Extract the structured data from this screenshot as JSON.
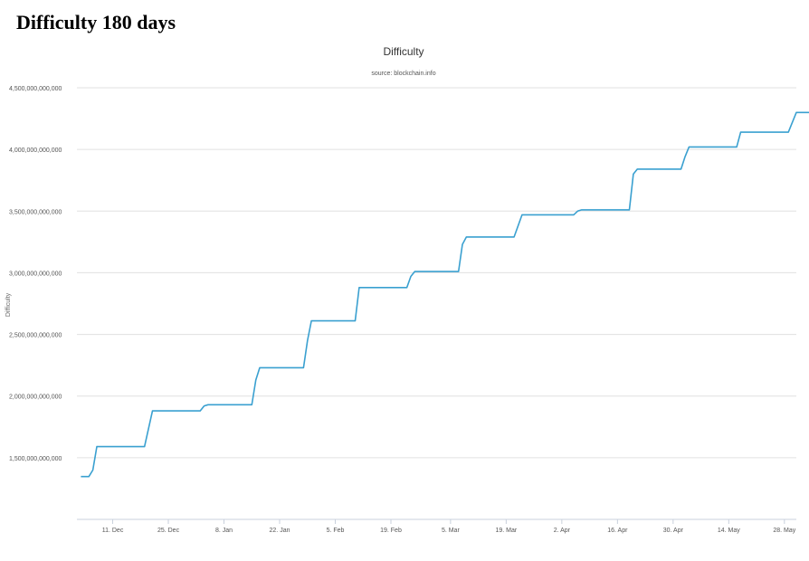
{
  "page": {
    "heading": "Difficulty 180 days"
  },
  "chart_data": {
    "type": "line",
    "title": "Difficulty",
    "subtitle": "source: blockchain.info",
    "xlabel": "",
    "ylabel": "Difficulty",
    "ylim": [
      1000000000000,
      4500000000000
    ],
    "xlim": [
      "2015-12-02",
      "2016-05-31"
    ],
    "y_ticks": [
      1500000000000,
      2000000000000,
      2500000000000,
      3000000000000,
      3500000000000,
      4000000000000,
      4500000000000
    ],
    "y_tick_labels": [
      "1,500,000,000,000",
      "2,000,000,000,000",
      "2,500,000,000,000",
      "3,000,000,000,000",
      "3,500,000,000,000",
      "4,000,000,000,000",
      "4,500,000,000,000"
    ],
    "x_ticks": [
      "2015-12-11",
      "2015-12-25",
      "2016-01-08",
      "2016-01-22",
      "2016-02-05",
      "2016-02-19",
      "2016-03-05",
      "2016-03-19",
      "2016-04-02",
      "2016-04-16",
      "2016-04-30",
      "2016-05-14",
      "2016-05-28"
    ],
    "x_tick_labels": [
      "11. Dec",
      "25. Dec",
      "8. Jan",
      "22. Jan",
      "5. Feb",
      "19. Feb",
      "5. Mar",
      "19. Mar",
      "2. Apr",
      "16. Apr",
      "30. Apr",
      "14. May",
      "28. May"
    ],
    "grid": true,
    "legend": "none",
    "color": "#3aa0d0",
    "series": [
      {
        "x": [
          "2015-12-03",
          "2015-12-05",
          "2015-12-06",
          "2015-12-07",
          "2015-12-19",
          "2015-12-21",
          "2016-01-02",
          "2016-01-03",
          "2016-01-04",
          "2016-01-15",
          "2016-01-16",
          "2016-01-17",
          "2016-01-28",
          "2016-01-29",
          "2016-01-30",
          "2016-02-10",
          "2016-02-11",
          "2016-02-23",
          "2016-02-24",
          "2016-02-25",
          "2016-03-07",
          "2016-03-08",
          "2016-03-09",
          "2016-03-21",
          "2016-03-23",
          "2016-04-05",
          "2016-04-06",
          "2016-04-07",
          "2016-04-19",
          "2016-04-20",
          "2016-04-21",
          "2016-05-02",
          "2016-05-03",
          "2016-05-04",
          "2016-05-16",
          "2016-05-17",
          "2016-05-29",
          "2016-05-31",
          "2016-06-05"
        ],
        "y": [
          1347000000000,
          1347000000000,
          1400000000000,
          1590000000000,
          1590000000000,
          1880000000000,
          1880000000000,
          1920000000000,
          1930000000000,
          1930000000000,
          2130000000000,
          2230000000000,
          2230000000000,
          2450000000000,
          2610000000000,
          2610000000000,
          2880000000000,
          2880000000000,
          2970000000000,
          3010000000000,
          3010000000000,
          3230000000000,
          3290000000000,
          3290000000000,
          3470000000000,
          3470000000000,
          3500000000000,
          3510000000000,
          3510000000000,
          3800000000000,
          3840000000000,
          3840000000000,
          3940000000000,
          4020000000000,
          4020000000000,
          4140000000000,
          4140000000000,
          4300000000000,
          4300000000000
        ]
      }
    ]
  }
}
